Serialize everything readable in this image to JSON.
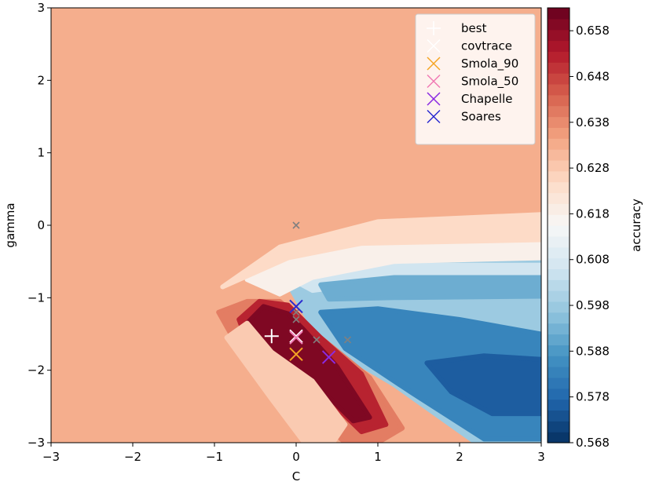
{
  "chart_data": {
    "type": "contourf",
    "xlabel": "C",
    "ylabel": "gamma",
    "xlim": [
      -3,
      3
    ],
    "ylim": [
      -3,
      3
    ],
    "xticks": [
      -3,
      -2,
      -1,
      0,
      1,
      2,
      3
    ],
    "yticks": [
      -3,
      -2,
      -1,
      0,
      1,
      2,
      3
    ],
    "background_level": 0.633,
    "colorbar": {
      "label": "accuracy",
      "min": 0.568,
      "max": 0.663,
      "ticks": [
        0.568,
        0.578,
        0.588,
        0.598,
        0.608,
        0.618,
        0.628,
        0.638,
        0.648,
        0.658
      ],
      "colormap": "RdBu_r",
      "levels": 40
    },
    "regions": [
      {
        "name": "blue-plateau",
        "value": 0.598,
        "polygon": [
          [
            -0.05,
            -0.75
          ],
          [
            0.5,
            -0.5
          ],
          [
            1.5,
            -0.45
          ],
          [
            3,
            -0.45
          ],
          [
            3,
            -3
          ],
          [
            2.2,
            -3
          ],
          [
            1.2,
            -2.2
          ],
          [
            0.3,
            -1.6
          ],
          [
            -0.05,
            -0.9
          ]
        ]
      },
      {
        "name": "deep-blue-band",
        "value": 0.584,
        "polygon": [
          [
            0.3,
            -1.2
          ],
          [
            1.0,
            -1.15
          ],
          [
            2.0,
            -1.3
          ],
          [
            3,
            -1.5
          ],
          [
            3,
            -2.95
          ],
          [
            2.3,
            -2.95
          ],
          [
            1.4,
            -2.3
          ],
          [
            0.6,
            -1.7
          ]
        ]
      },
      {
        "name": "darkest-blue",
        "value": 0.576,
        "polygon": [
          [
            1.6,
            -1.9
          ],
          [
            2.3,
            -1.8
          ],
          [
            3,
            -1.85
          ],
          [
            3,
            -2.6
          ],
          [
            2.4,
            -2.6
          ],
          [
            1.9,
            -2.3
          ]
        ]
      },
      {
        "name": "light-blue-stripe",
        "value": 0.606,
        "polygon": [
          [
            -0.1,
            -0.72
          ],
          [
            1.0,
            -0.55
          ],
          [
            3,
            -0.55
          ],
          [
            3,
            -0.7
          ],
          [
            1.0,
            -0.78
          ],
          [
            0.2,
            -0.9
          ]
        ]
      },
      {
        "name": "mid-blue-stripe",
        "value": 0.592,
        "polygon": [
          [
            0.3,
            -0.82
          ],
          [
            1.2,
            -0.72
          ],
          [
            3,
            -0.72
          ],
          [
            3,
            -0.98
          ],
          [
            1.2,
            -1.0
          ],
          [
            0.4,
            -1.02
          ]
        ]
      },
      {
        "name": "white-edge",
        "value": 0.618,
        "polygon": [
          [
            -0.6,
            -0.75
          ],
          [
            -0.1,
            -0.45
          ],
          [
            0.8,
            -0.25
          ],
          [
            3,
            -0.2
          ],
          [
            3,
            -0.45
          ],
          [
            1.2,
            -0.5
          ],
          [
            0.2,
            -0.72
          ],
          [
            -0.2,
            -0.95
          ]
        ]
      },
      {
        "name": "pale-band",
        "value": 0.625,
        "polygon": [
          [
            -0.9,
            -0.85
          ],
          [
            -0.2,
            -0.3
          ],
          [
            1.0,
            0.05
          ],
          [
            3,
            0.15
          ],
          [
            3,
            -0.2
          ],
          [
            0.8,
            -0.25
          ],
          [
            -0.1,
            -0.45
          ]
        ]
      },
      {
        "name": "red-ridge-outer",
        "value": 0.64,
        "polygon": [
          [
            -0.95,
            -1.2
          ],
          [
            -0.6,
            -1.05
          ],
          [
            -0.2,
            -1.05
          ],
          [
            0.3,
            -1.55
          ],
          [
            0.9,
            -2.1
          ],
          [
            1.3,
            -2.8
          ],
          [
            1.0,
            -3.0
          ],
          [
            0.6,
            -3.0
          ],
          [
            0.0,
            -2.4
          ],
          [
            -0.6,
            -1.9
          ]
        ]
      },
      {
        "name": "red-ridge",
        "value": 0.652,
        "polygon": [
          [
            -0.7,
            -1.3
          ],
          [
            -0.45,
            -1.05
          ],
          [
            -0.1,
            -1.1
          ],
          [
            0.3,
            -1.55
          ],
          [
            0.8,
            -2.05
          ],
          [
            1.1,
            -2.75
          ],
          [
            0.8,
            -2.85
          ],
          [
            0.3,
            -2.3
          ],
          [
            -0.2,
            -1.85
          ],
          [
            -0.6,
            -1.6
          ]
        ]
      },
      {
        "name": "red-core",
        "value": 0.66,
        "polygon": [
          [
            -0.6,
            -1.35
          ],
          [
            -0.4,
            -1.12
          ],
          [
            -0.1,
            -1.22
          ],
          [
            0.1,
            -1.45
          ],
          [
            0.5,
            -1.95
          ],
          [
            0.9,
            -2.65
          ],
          [
            0.7,
            -2.7
          ],
          [
            0.2,
            -2.15
          ],
          [
            -0.3,
            -1.75
          ]
        ]
      },
      {
        "name": "pale-edge-left",
        "value": 0.628,
        "polygon": [
          [
            -0.85,
            -1.55
          ],
          [
            -0.6,
            -1.35
          ],
          [
            -0.3,
            -1.75
          ],
          [
            0.2,
            -2.15
          ],
          [
            0.6,
            -2.75
          ],
          [
            0.45,
            -3.0
          ],
          [
            0.1,
            -3.0
          ],
          [
            -0.3,
            -2.4
          ]
        ]
      }
    ],
    "markers": [
      {
        "label": "best",
        "x": -0.3,
        "y": -1.53,
        "color": "#ffffff",
        "shape": "plus"
      },
      {
        "label": "covtrace",
        "x": 0.0,
        "y": -1.53,
        "color": "#ffffff",
        "shape": "x"
      },
      {
        "label": "Smola_90",
        "x": 0.0,
        "y": -1.78,
        "color": "#f5a524",
        "shape": "x"
      },
      {
        "label": "Smola_50",
        "x": 0.0,
        "y": -1.55,
        "color": "#f07ab4",
        "shape": "x"
      },
      {
        "label": "Chapelle",
        "x": 0.4,
        "y": -1.82,
        "color": "#8b2be2",
        "shape": "x"
      },
      {
        "label": "Soares",
        "x": 0.0,
        "y": -1.12,
        "color": "#2a2ad0",
        "shape": "x"
      }
    ],
    "grey_markers": [
      {
        "x": 0.0,
        "y": 0.0
      },
      {
        "x": 0.0,
        "y": -1.2
      },
      {
        "x": 0.0,
        "y": -1.3
      },
      {
        "x": 0.25,
        "y": -1.58
      },
      {
        "x": 0.63,
        "y": -1.58
      }
    ]
  }
}
